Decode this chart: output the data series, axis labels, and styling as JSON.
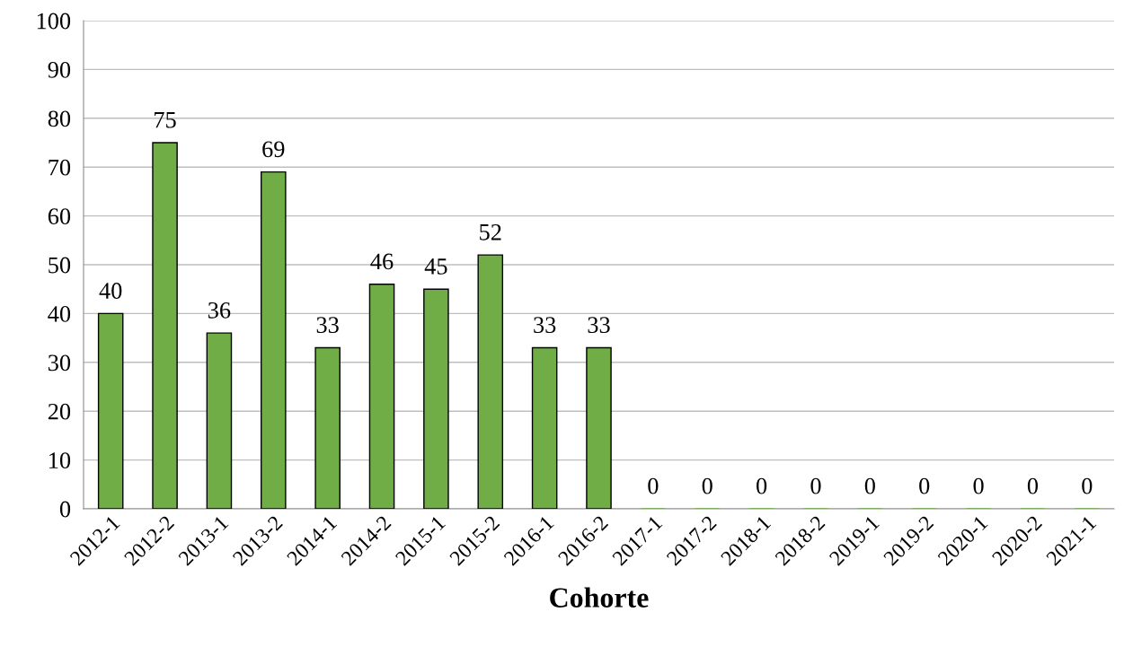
{
  "chart_data": {
    "type": "bar",
    "xlabel": "Cohorte",
    "categories": [
      "2012-1",
      "2012-2",
      "2013-1",
      "2013-2",
      "2014-1",
      "2014-2",
      "2015-1",
      "2015-2",
      "2016-1",
      "2016-2",
      "2017-1",
      "2017-2",
      "2018-1",
      "2018-2",
      "2019-1",
      "2019-2",
      "2020-1",
      "2020-2",
      "2021-1"
    ],
    "values": [
      40,
      75,
      36,
      69,
      33,
      46,
      45,
      52,
      33,
      33,
      0,
      0,
      0,
      0,
      0,
      0,
      0,
      0,
      0
    ],
    "color": "#70ad47",
    "ylim": [
      0,
      100
    ],
    "yticks": [
      0,
      10,
      20,
      30,
      40,
      50,
      60,
      70,
      80,
      90,
      100
    ],
    "grid": "y",
    "data_labels": true,
    "legend": false
  }
}
